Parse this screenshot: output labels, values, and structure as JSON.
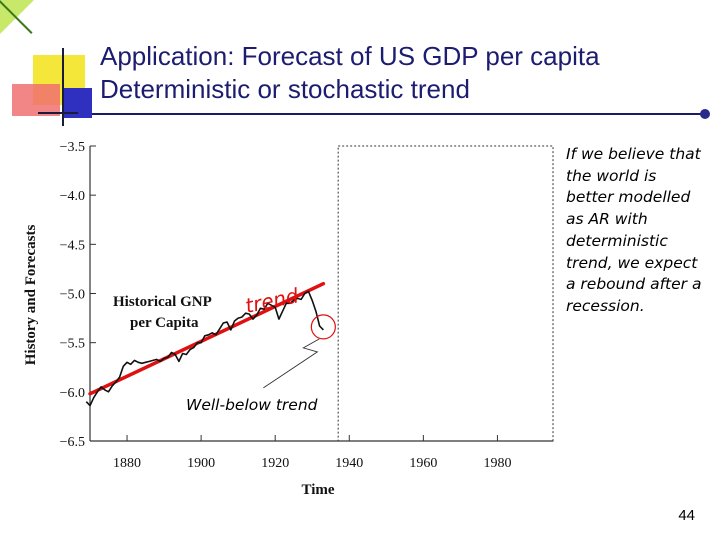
{
  "slide": {
    "title_line1": "Application: Forecast of US GDP per capita",
    "title_line2": "Deterministic or stochastic trend",
    "side_note": "If we believe that the world is better modelled as AR with deterministic trend, we expect a rebound after a recession.",
    "page_number": "44"
  },
  "colors": {
    "title": "#1c1c70",
    "trend_line": "#e01010",
    "series": "#111111"
  },
  "chart_data": {
    "type": "line",
    "xlabel": "Time",
    "ylabel": "History and Forecasts",
    "xlim": [
      1870,
      1995
    ],
    "ylim": [
      -6.5,
      -3.5
    ],
    "x_ticks": [
      1880,
      1900,
      1920,
      1940,
      1960,
      1980
    ],
    "y_ticks": [
      -3.5,
      -4.0,
      -4.5,
      -5.0,
      -5.5,
      -6.0,
      -6.5
    ],
    "y_tick_labels": [
      "−3.5",
      "−4.0",
      "−4.5",
      "−5.0",
      "−5.5",
      "−6.0",
      "−6.5"
    ],
    "inset_label_line1": "Historical GNP",
    "inset_label_line2": "per Capita",
    "annotation_trend": "trend",
    "annotation_below": "Well-below trend",
    "forecast_region": [
      1937,
      1995
    ],
    "trend": {
      "x": [
        1870,
        1933
      ],
      "y": [
        -6.02,
        -4.9
      ]
    },
    "series": [
      {
        "x": [
          1869,
          1870,
          1871,
          1872,
          1873,
          1874,
          1875,
          1876,
          1877,
          1878,
          1879,
          1880,
          1881,
          1882,
          1883,
          1884,
          1885,
          1886,
          1887,
          1888,
          1889,
          1890,
          1891,
          1892,
          1893,
          1894,
          1895,
          1896,
          1897,
          1898,
          1899,
          1900,
          1901,
          1902,
          1903,
          1904,
          1905,
          1906,
          1907,
          1908,
          1909,
          1910,
          1911,
          1912,
          1913,
          1914,
          1915,
          1916,
          1917,
          1918,
          1919,
          1920,
          1921,
          1922,
          1923,
          1924,
          1925,
          1926,
          1927,
          1928,
          1929,
          1930,
          1931,
          1932,
          1933
        ],
        "y": [
          -6.1,
          -6.14,
          -6.06,
          -6.0,
          -5.95,
          -5.98,
          -6.0,
          -5.94,
          -5.9,
          -5.85,
          -5.74,
          -5.7,
          -5.72,
          -5.68,
          -5.7,
          -5.71,
          -5.7,
          -5.69,
          -5.68,
          -5.67,
          -5.69,
          -5.66,
          -5.65,
          -5.6,
          -5.62,
          -5.69,
          -5.61,
          -5.62,
          -5.57,
          -5.55,
          -5.5,
          -5.5,
          -5.43,
          -5.42,
          -5.4,
          -5.42,
          -5.36,
          -5.3,
          -5.29,
          -5.37,
          -5.28,
          -5.25,
          -5.24,
          -5.2,
          -5.21,
          -5.26,
          -5.22,
          -5.15,
          -5.16,
          -5.1,
          -5.12,
          -5.14,
          -5.26,
          -5.18,
          -5.1,
          -5.1,
          -5.07,
          -5.05,
          -5.06,
          -5.0,
          -4.98,
          -5.07,
          -5.18,
          -5.33,
          -5.37
        ]
      }
    ]
  }
}
